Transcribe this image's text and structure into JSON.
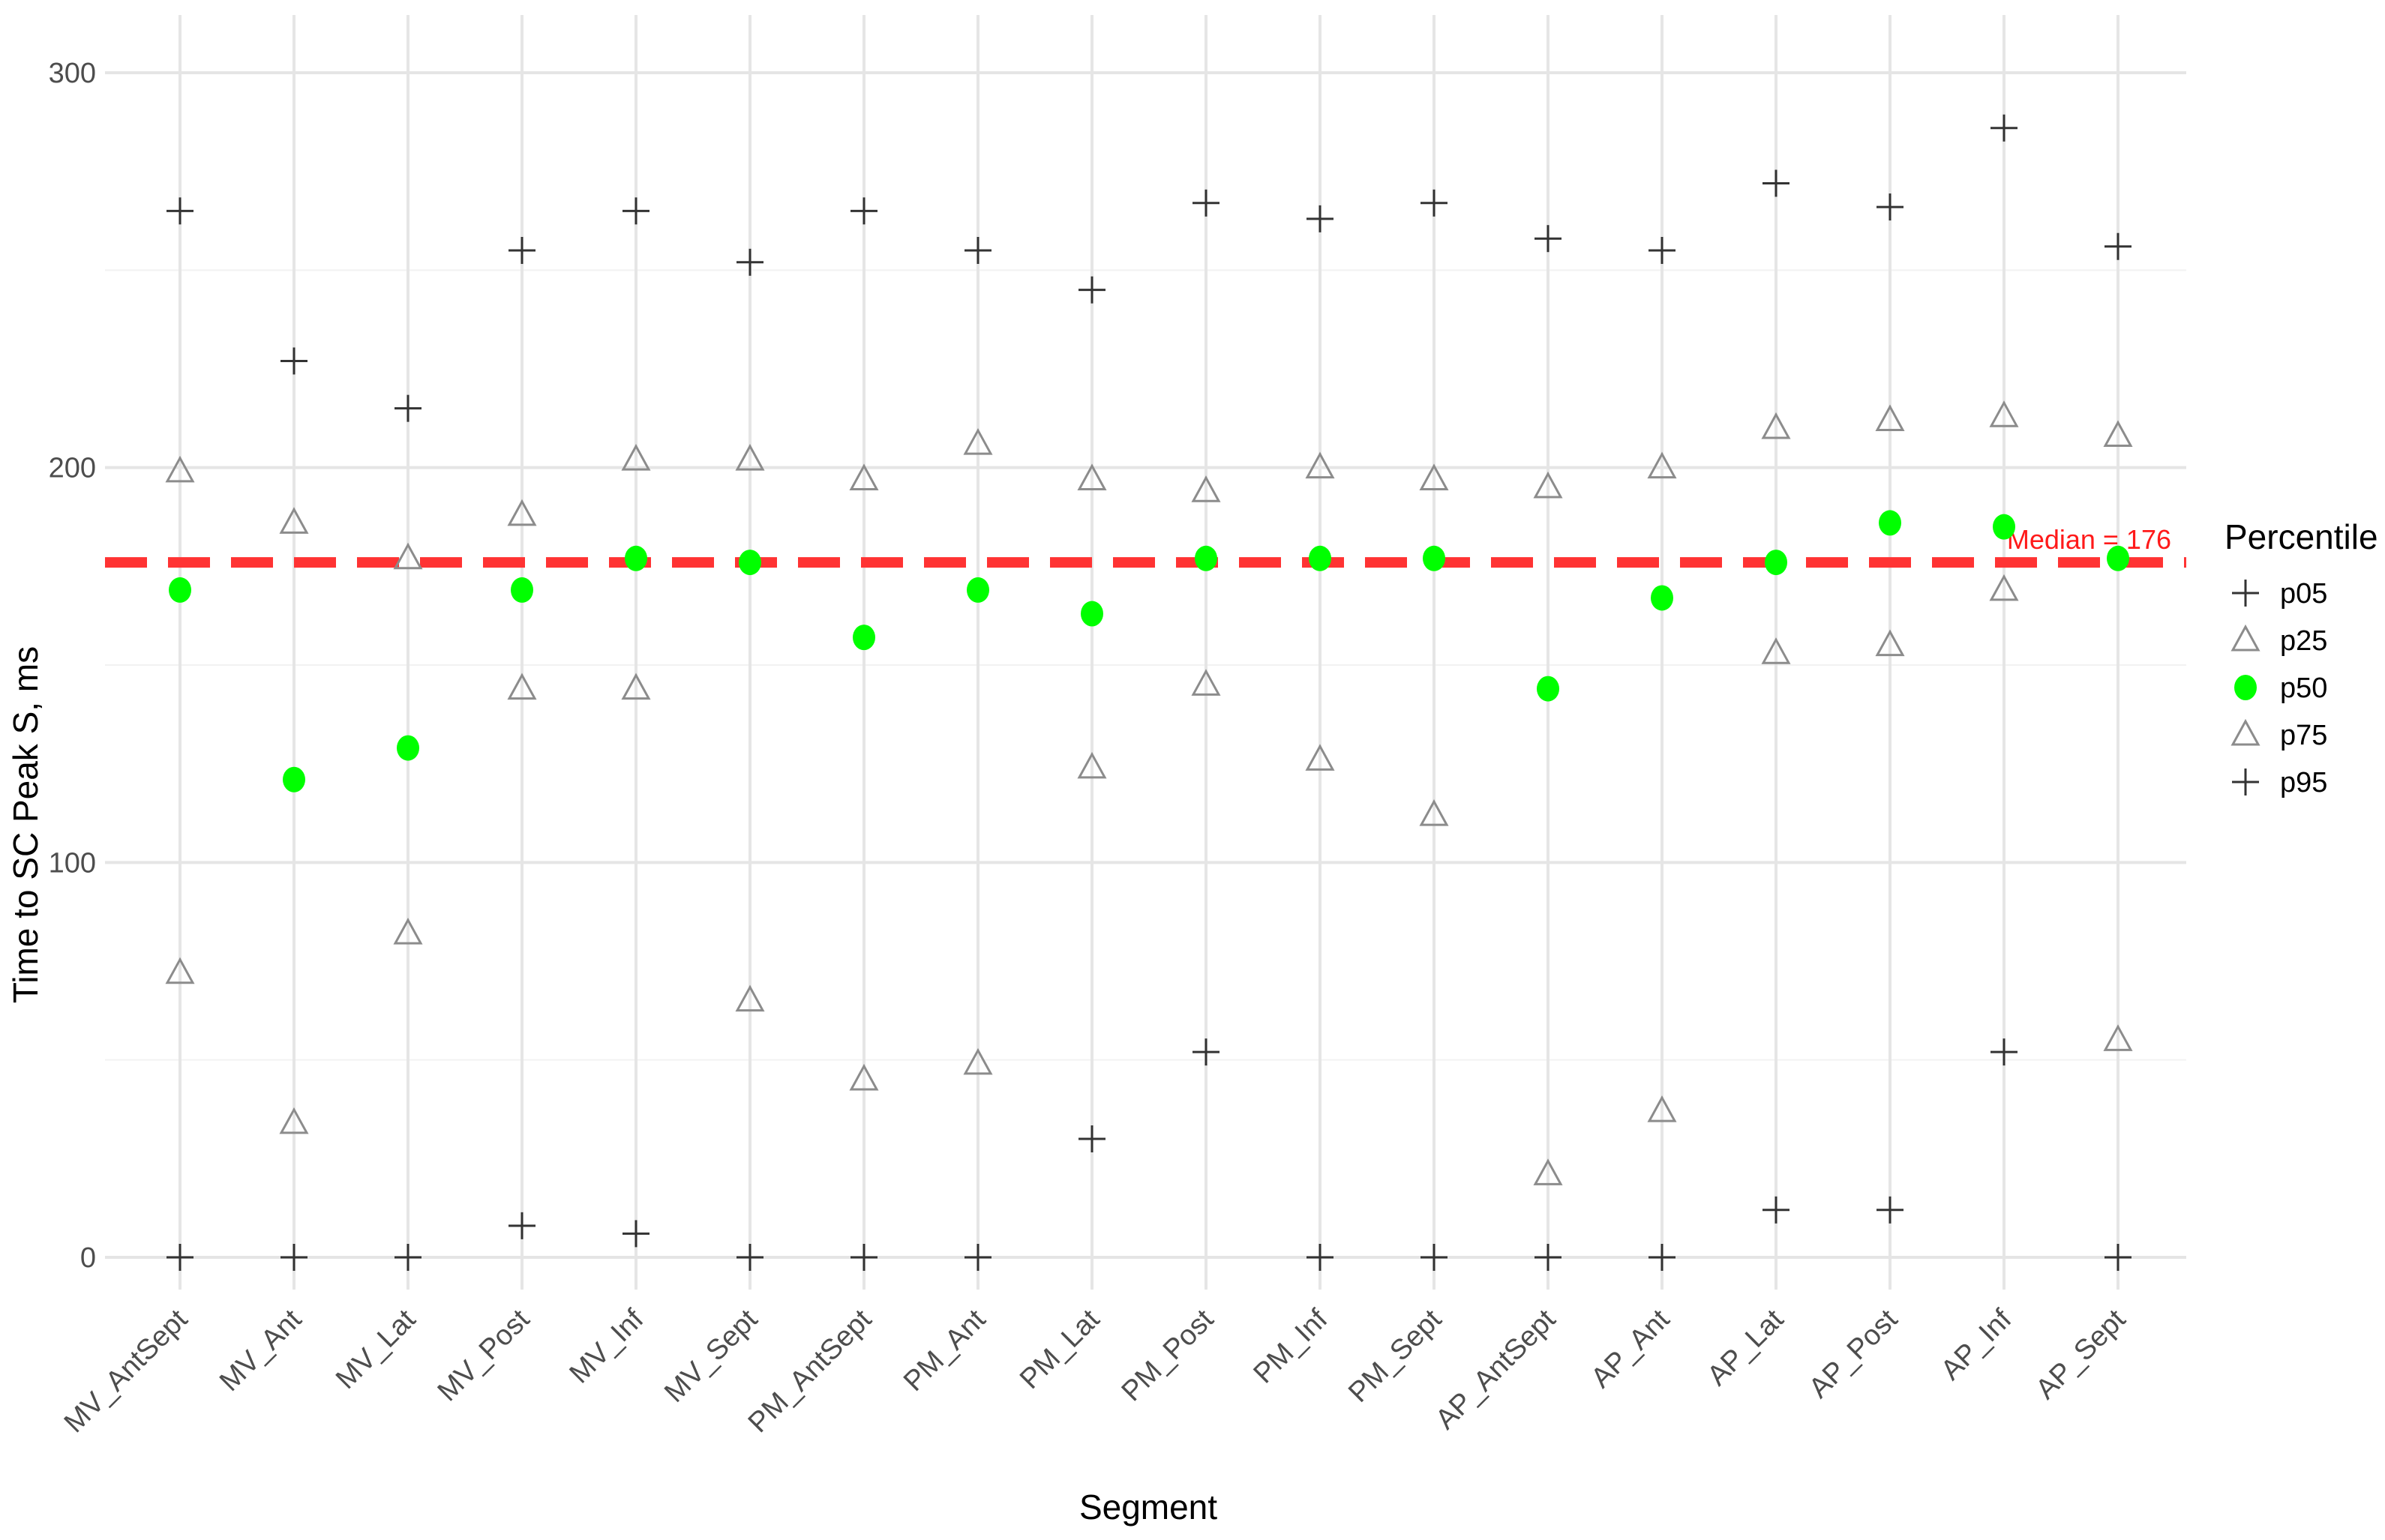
{
  "chart_data": {
    "type": "scatter",
    "xlabel": "Segment",
    "ylabel": "Time to SC Peak S, ms",
    "ylim": [
      -15,
      310
    ],
    "yticks": [
      0,
      100,
      200,
      300
    ],
    "grid": true,
    "legend_position": "right",
    "legend_title": "Percentile",
    "categories": [
      "MV_AntSept",
      "MV_Ant",
      "MV_Lat",
      "MV_Post",
      "MV_Inf",
      "MV_Sept",
      "PM_AntSept",
      "PM_Ant",
      "PM_Lat",
      "PM_Post",
      "PM_Inf",
      "PM_Sept",
      "AP_AntSept",
      "AP_Ant",
      "AP_Lat",
      "AP_Post",
      "AP_Inf",
      "AP_Sept"
    ],
    "series": [
      {
        "name": "p05",
        "shape": "plus",
        "color": "#333333",
        "values": [
          0,
          0,
          0,
          8,
          6,
          0,
          0,
          0,
          30,
          52,
          0,
          0,
          0,
          0,
          12,
          12,
          52,
          0
        ]
      },
      {
        "name": "p25",
        "shape": "triangle",
        "color": "#8c8c8c",
        "values": [
          72,
          34,
          82,
          144,
          144,
          65,
          45,
          49,
          124,
          145,
          126,
          112,
          21,
          37,
          153,
          155,
          169,
          55
        ]
      },
      {
        "name": "p50",
        "shape": "circle",
        "color": "#00ff00",
        "values": [
          169,
          121,
          129,
          169,
          177,
          176,
          157,
          169,
          163,
          177,
          177,
          177,
          144,
          167,
          176,
          186,
          185,
          177
        ]
      },
      {
        "name": "p75",
        "shape": "triangle",
        "color": "#8c8c8c",
        "values": [
          199,
          186,
          177,
          188,
          202,
          202,
          197,
          206,
          197,
          194,
          200,
          197,
          195,
          200,
          210,
          212,
          213,
          208
        ]
      },
      {
        "name": "p95",
        "shape": "plus",
        "color": "#333333",
        "values": [
          265,
          227,
          215,
          255,
          265,
          252,
          265,
          255,
          245,
          267,
          263,
          267,
          258,
          255,
          272,
          266,
          286,
          256
        ]
      }
    ],
    "reference_line": {
      "y": 176,
      "label": "Median = 176",
      "color": "#ff3333",
      "style": "dashed"
    }
  }
}
